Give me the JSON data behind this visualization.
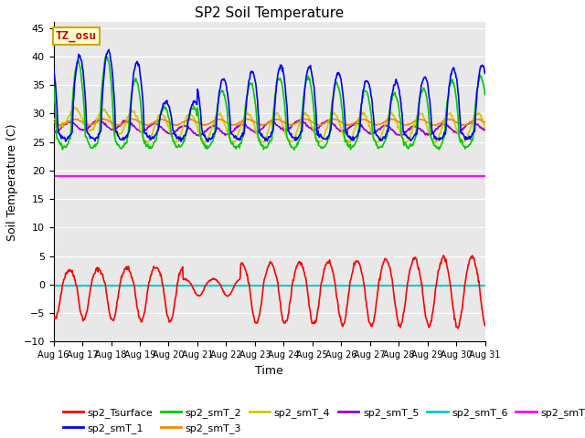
{
  "title": "SP2 Soil Temperature",
  "xlabel": "Time",
  "ylabel": "Soil Temperature (C)",
  "ylim": [
    -10,
    46
  ],
  "yticks": [
    -10,
    -5,
    0,
    5,
    10,
    15,
    20,
    25,
    30,
    35,
    40,
    45
  ],
  "x_labels": [
    "Aug 16",
    "Aug 17",
    "Aug 18",
    "Aug 19",
    "Aug 20",
    "Aug 21",
    "Aug 22",
    "Aug 23",
    "Aug 24",
    "Aug 25",
    "Aug 26",
    "Aug 27",
    "Aug 28",
    "Aug 29",
    "Aug 30",
    "Aug 31"
  ],
  "annotation_text": "TZ_osu",
  "annotation_box_facecolor": "#ffffcc",
  "annotation_box_edgecolor": "#ccaa00",
  "annotation_text_color": "#cc0000",
  "colors": {
    "sp2_Tsurface": "#ff0000",
    "sp2_smT_1": "#0000ff",
    "sp2_smT_2": "#00cc00",
    "sp2_smT_3": "#ff8800",
    "sp2_smT_4": "#cccc00",
    "sp2_smT_5": "#9900cc",
    "sp2_smT_6": "#00cccc",
    "sp2_smT_7": "#ff00ff"
  },
  "plot_bg_color": "#e8e8e8",
  "fig_bg_color": "#ffffff",
  "grid_color": "#ffffff",
  "sp2_smT_7_value": 19.0,
  "sp2_smT_6_value": -0.1,
  "n_days": 15,
  "seed": 42
}
